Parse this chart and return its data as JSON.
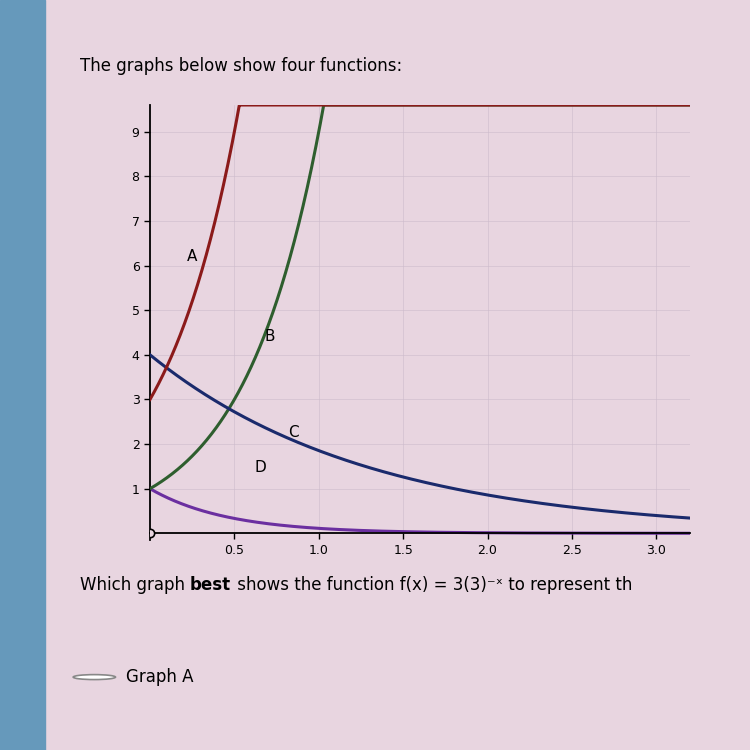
{
  "title": "The graphs below show four functions:",
  "question_pre": "Which graph ",
  "question_bold": "best",
  "question_post": " shows the function f(x) = 3(3)⁻ˣ to represent th",
  "answer_label": "Graph A",
  "xlim": [
    0,
    3.2
  ],
  "ylim": [
    -0.15,
    9.6
  ],
  "xticks": [
    0.5,
    1,
    1.5,
    2,
    2.5,
    3
  ],
  "yticks": [
    1,
    2,
    3,
    4,
    5,
    6,
    7,
    8,
    9
  ],
  "bg_color": "#e8d5e0",
  "left_strip_color": "#6699bb",
  "plot_bg": "#e8d5e0",
  "curves": [
    {
      "label": "A",
      "color": "#8B1A1A",
      "formula": "3 * 3**(2*x)",
      "ann_x": 0.22,
      "ann_y": 6.1
    },
    {
      "label": "B",
      "color": "#2E5E2E",
      "formula": "3**(2*x)",
      "ann_x": 0.68,
      "ann_y": 4.3
    },
    {
      "label": "C",
      "color": "#1A2A6C",
      "formula": "4 * 3**(-0.7*x)",
      "ann_x": 0.82,
      "ann_y": 2.15
    },
    {
      "label": "D",
      "color": "#6B2FA0",
      "formula": "3**(-2*x)",
      "ann_x": 0.62,
      "ann_y": 1.38
    }
  ],
  "title_fontsize": 12,
  "label_fontsize": 11,
  "tick_fontsize": 9,
  "question_fontsize": 12,
  "answer_fontsize": 12
}
